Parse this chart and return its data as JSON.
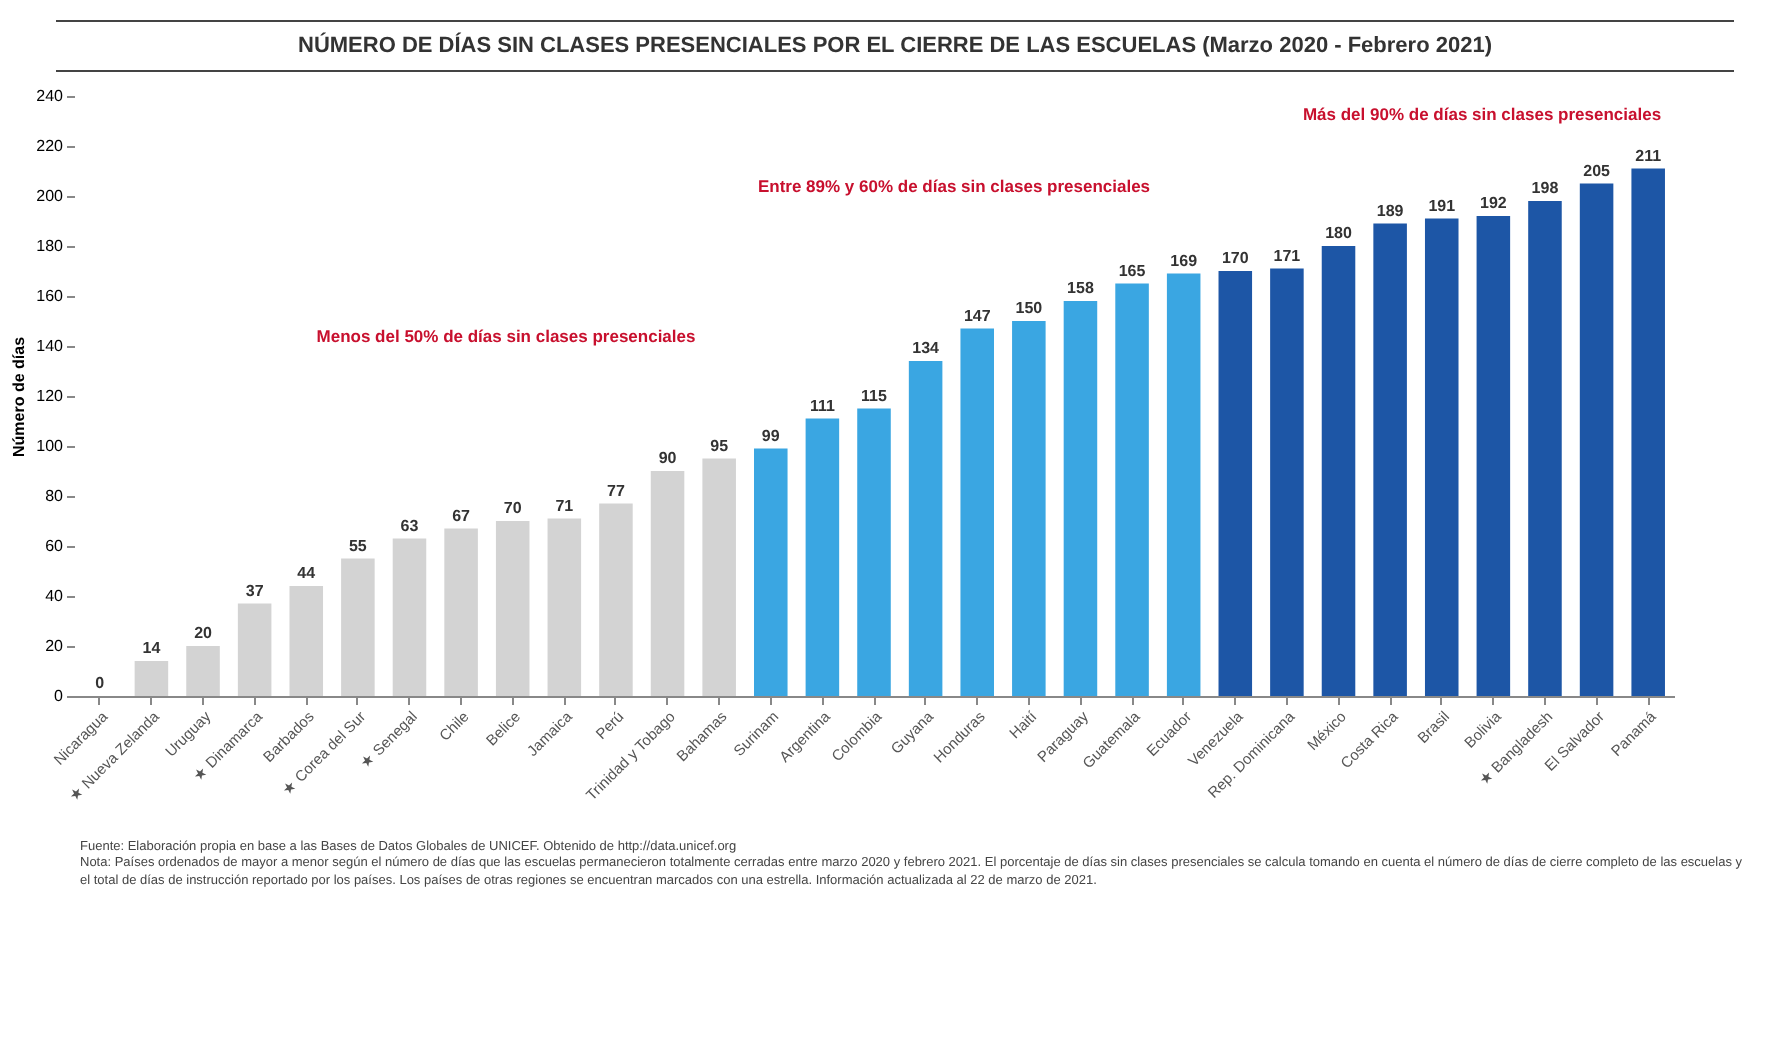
{
  "chart_data": {
    "type": "bar",
    "title": "NÚMERO DE DÍAS SIN CLASES PRESENCIALES POR EL CIERRE DE LAS ESCUELAS (Marzo 2020 - Febrero 2021)",
    "ylabel": "Número de días",
    "categories": [
      "Nicaragua",
      "★ Nueva Zelanda",
      "Uruguay",
      "★ Dinamarca",
      "Barbados",
      "★ Corea del Sur",
      "★ Senegal",
      "Chile",
      "Belice",
      "Jamaica",
      "Perú",
      "Trinidad y Tobago",
      "Bahamas",
      "Surinam",
      "Argentina",
      "Colombia",
      "Guyana",
      "Honduras",
      "Haití",
      "Paraguay",
      "Guatemala",
      "Ecuador",
      "Venezuela",
      "Rep. Dominicana",
      "México",
      "Costa Rica",
      "Brasil",
      "Bolivia",
      "★ Bangladesh",
      "El Salvador",
      "Panamá"
    ],
    "values": [
      0,
      14,
      20,
      37,
      44,
      55,
      63,
      67,
      70,
      71,
      77,
      90,
      95,
      99,
      111,
      115,
      134,
      147,
      150,
      158,
      165,
      169,
      170,
      171,
      180,
      189,
      191,
      192,
      198,
      205,
      211
    ],
    "colors": [
      "#d3d3d3",
      "#d3d3d3",
      "#d3d3d3",
      "#d3d3d3",
      "#d3d3d3",
      "#d3d3d3",
      "#d3d3d3",
      "#d3d3d3",
      "#d3d3d3",
      "#d3d3d3",
      "#d3d3d3",
      "#d3d3d3",
      "#d3d3d3",
      "#3aa6e2",
      "#3aa6e2",
      "#3aa6e2",
      "#3aa6e2",
      "#3aa6e2",
      "#3aa6e2",
      "#3aa6e2",
      "#3aa6e2",
      "#3aa6e2",
      "#1d56a6",
      "#1d56a6",
      "#1d56a6",
      "#1d56a6",
      "#1d56a6",
      "#1d56a6",
      "#1d56a6",
      "#1d56a6",
      "#1d56a6"
    ],
    "ylim": [
      0,
      240
    ],
    "yticks": [
      0,
      20,
      40,
      60,
      80,
      100,
      120,
      140,
      160,
      180,
      200,
      220,
      240
    ],
    "data_labels": true,
    "annotations": [
      "Menos del 50% de días sin clases presenciales",
      "Entre 89% y 60% de días sin clases presenciales",
      "Más del 90% de días sin clases presenciales",
      "Fuente: Elaboración propia en base a las Bases de Datos Globales de UNICEF. Obtenido de http://data.unicef.org",
      "Nota: Países ordenados de mayor a menor según el número de días que las escuelas permanecieron totalmente cerradas entre marzo 2020 y febrero 2021. El porcentaje de días sin clases presenciales se calcula tomando en cuenta el número de días de cierre completo de las escuelas y el total de días de instrucción reportado por los países. Los países de otras regiones se encuentran marcados con una estrella. Información actualizada al 22 de marzo de 2021."
    ]
  }
}
